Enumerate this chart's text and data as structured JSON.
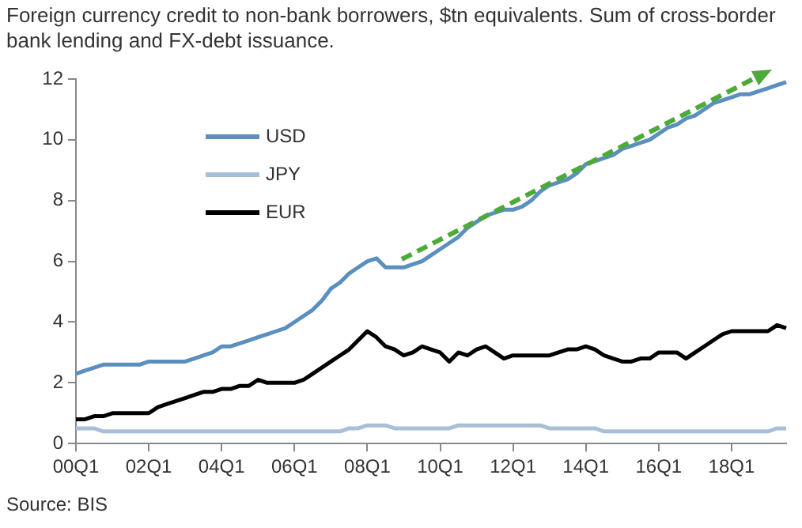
{
  "chart_data": {
    "type": "line",
    "title": "Foreign currency credit to non-bank borrowers, $tn equivalents. Sum of cross-border bank lending and FX-debt issuance.",
    "annotations": [
      "Source: BIS"
    ],
    "categories": [
      "00Q1",
      null,
      null,
      null,
      null,
      null,
      null,
      null,
      "02Q1",
      null,
      null,
      null,
      null,
      null,
      null,
      null,
      "04Q1",
      null,
      null,
      null,
      null,
      null,
      null,
      null,
      "06Q1",
      null,
      null,
      null,
      null,
      null,
      null,
      null,
      "08Q1",
      null,
      null,
      null,
      null,
      null,
      null,
      null,
      "10Q1",
      null,
      null,
      null,
      null,
      null,
      null,
      null,
      "12Q1",
      null,
      null,
      null,
      null,
      null,
      null,
      null,
      "14Q1",
      null,
      null,
      null,
      null,
      null,
      null,
      null,
      "16Q1",
      null,
      null,
      null,
      null,
      null,
      null,
      null,
      "18Q1",
      null,
      null,
      null,
      null,
      null,
      null
    ],
    "ylim": [
      0,
      12
    ],
    "yticks": [
      0,
      2,
      4,
      6,
      8,
      10,
      12
    ],
    "grid": false,
    "legend": "top left",
    "marker": "none",
    "line_style": "solid",
    "series": [
      {
        "name": "USD",
        "color": "#5b8fc0",
        "values": [
          2.3,
          2.4,
          2.5,
          2.6,
          2.6,
          2.6,
          2.6,
          2.6,
          2.7,
          2.7,
          2.7,
          2.7,
          2.7,
          2.8,
          2.9,
          3.0,
          3.2,
          3.2,
          3.3,
          3.4,
          3.5,
          3.6,
          3.7,
          3.8,
          4.0,
          4.2,
          4.4,
          4.7,
          5.1,
          5.3,
          5.6,
          5.8,
          6.0,
          6.1,
          5.8,
          5.8,
          5.8,
          5.9,
          6.0,
          6.2,
          6.4,
          6.6,
          6.8,
          7.1,
          7.3,
          7.5,
          7.6,
          7.7,
          7.7,
          7.8,
          8.0,
          8.3,
          8.5,
          8.6,
          8.7,
          8.9,
          9.2,
          9.3,
          9.4,
          9.5,
          9.7,
          9.8,
          9.9,
          10.0,
          10.2,
          10.4,
          10.5,
          10.7,
          10.8,
          11.0,
          11.2,
          11.3,
          11.4,
          11.5,
          11.5,
          11.6,
          11.7,
          11.8,
          11.9
        ]
      },
      {
        "name": "JPY",
        "color": "#a8bfd8",
        "values": [
          0.5,
          0.5,
          0.5,
          0.4,
          0.4,
          0.4,
          0.4,
          0.4,
          0.4,
          0.4,
          0.4,
          0.4,
          0.4,
          0.4,
          0.4,
          0.4,
          0.4,
          0.4,
          0.4,
          0.4,
          0.4,
          0.4,
          0.4,
          0.4,
          0.4,
          0.4,
          0.4,
          0.4,
          0.4,
          0.4,
          0.5,
          0.5,
          0.6,
          0.6,
          0.6,
          0.5,
          0.5,
          0.5,
          0.5,
          0.5,
          0.5,
          0.5,
          0.6,
          0.6,
          0.6,
          0.6,
          0.6,
          0.6,
          0.6,
          0.6,
          0.6,
          0.6,
          0.5,
          0.5,
          0.5,
          0.5,
          0.5,
          0.5,
          0.4,
          0.4,
          0.4,
          0.4,
          0.4,
          0.4,
          0.4,
          0.4,
          0.4,
          0.4,
          0.4,
          0.4,
          0.4,
          0.4,
          0.4,
          0.4,
          0.4,
          0.4,
          0.4,
          0.5,
          0.5
        ]
      },
      {
        "name": "EUR",
        "color": "#000000",
        "values": [
          0.8,
          0.8,
          0.9,
          0.9,
          1.0,
          1.0,
          1.0,
          1.0,
          1.0,
          1.2,
          1.3,
          1.4,
          1.5,
          1.6,
          1.7,
          1.7,
          1.8,
          1.8,
          1.9,
          1.9,
          2.1,
          2.0,
          2.0,
          2.0,
          2.0,
          2.1,
          2.3,
          2.5,
          2.7,
          2.9,
          3.1,
          3.4,
          3.7,
          3.5,
          3.2,
          3.1,
          2.9,
          3.0,
          3.2,
          3.1,
          3.0,
          2.7,
          3.0,
          2.9,
          3.1,
          3.2,
          3.0,
          2.8,
          2.9,
          2.9,
          2.9,
          2.9,
          2.9,
          3.0,
          3.1,
          3.1,
          3.2,
          3.1,
          2.9,
          2.8,
          2.7,
          2.7,
          2.8,
          2.8,
          3.0,
          3.0,
          3.0,
          2.8,
          3.0,
          3.2,
          3.4,
          3.6,
          3.7,
          3.7,
          3.7,
          3.7,
          3.7,
          3.9,
          3.8
        ]
      }
    ]
  }
}
